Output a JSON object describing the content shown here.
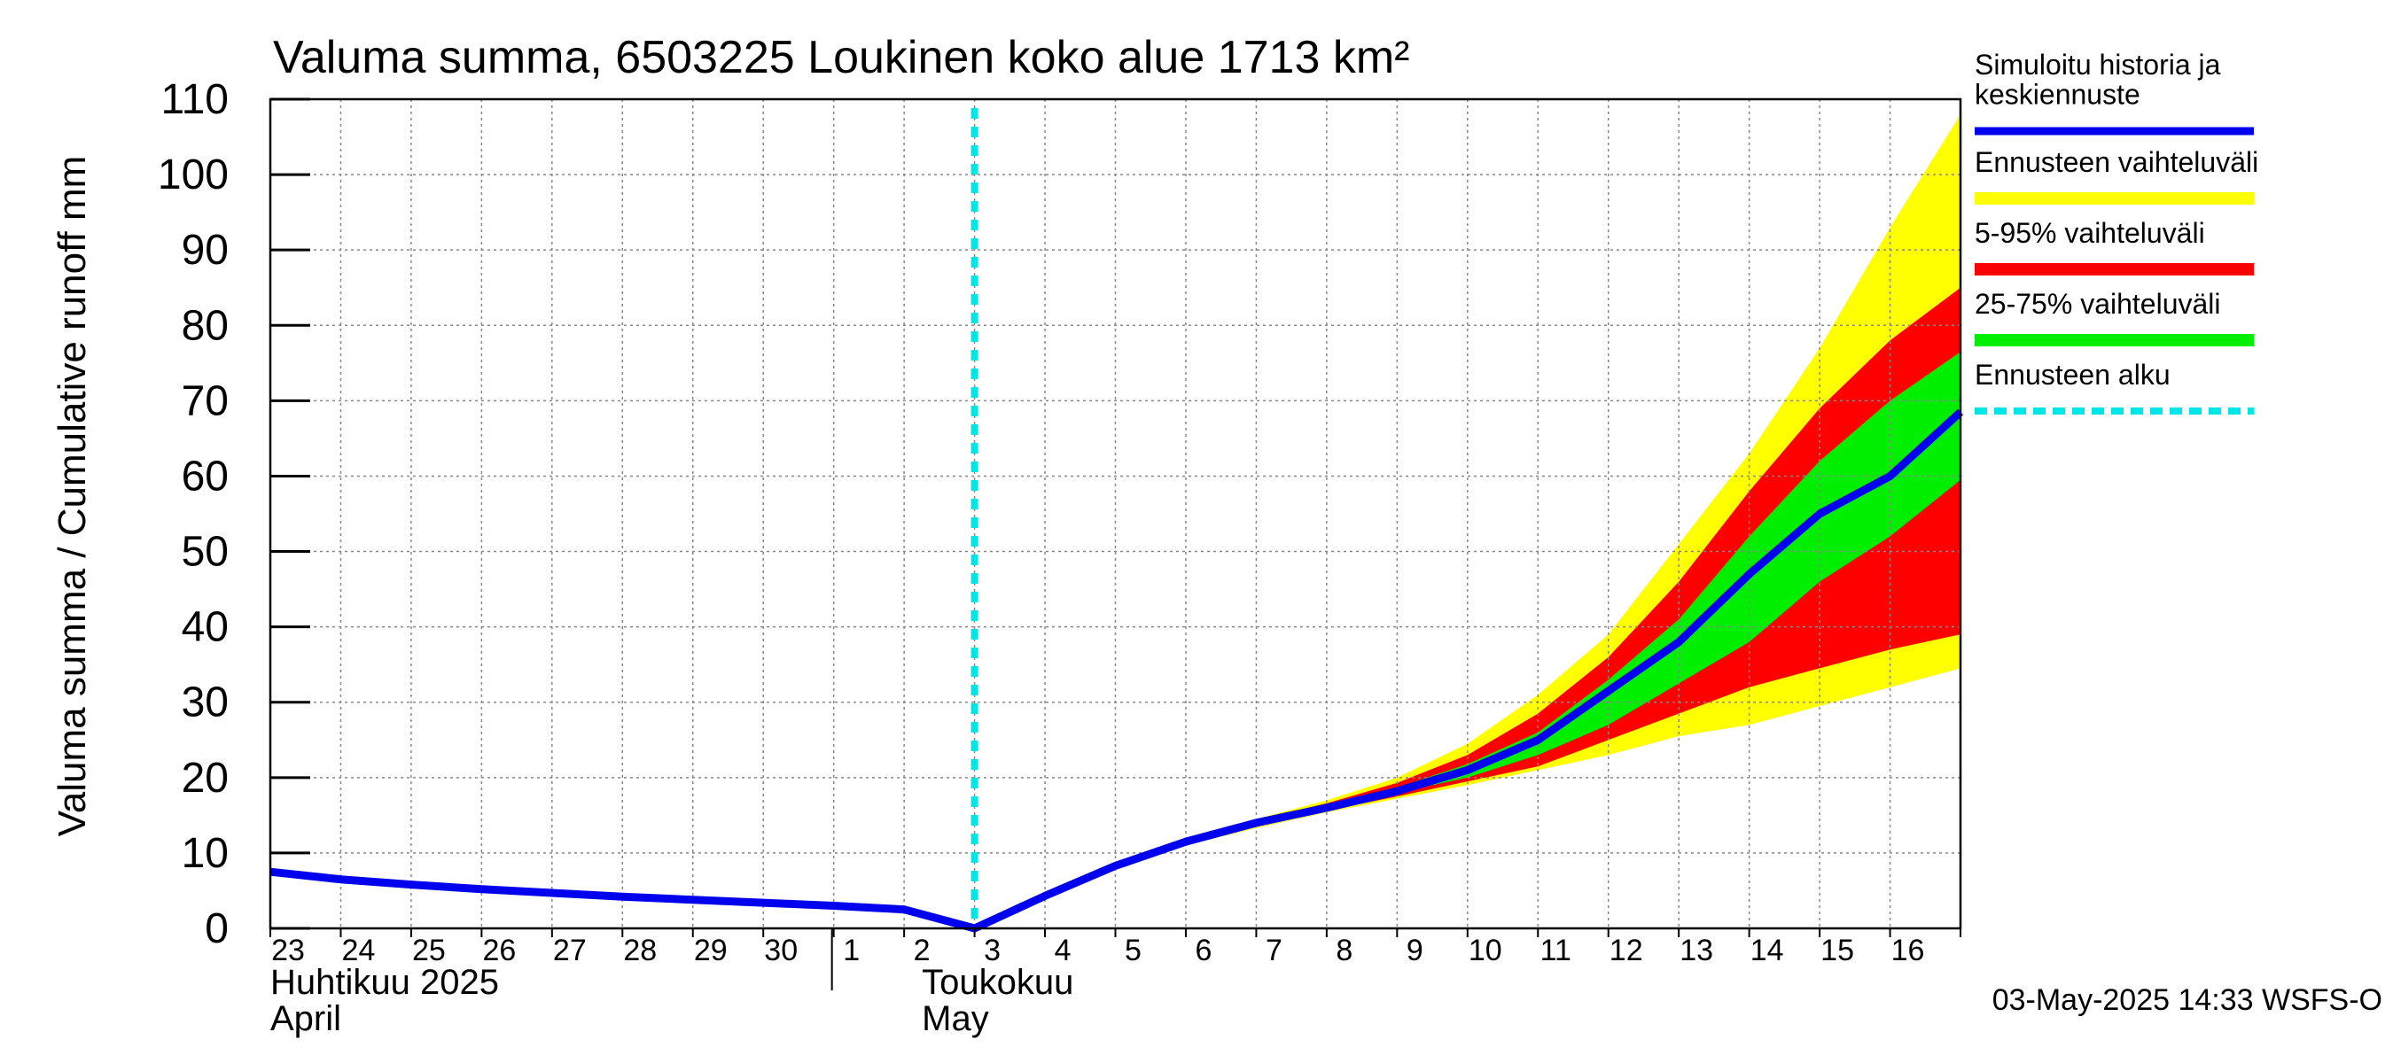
{
  "chart_data": {
    "type": "area",
    "title": "Valuma summa, 6503225 Loukinen koko alue 1713 km²",
    "ylabel": "Valuma summa / Cumulative runoff    mm",
    "ylim": [
      0,
      110
    ],
    "yticks": [
      0,
      10,
      20,
      30,
      40,
      50,
      60,
      70,
      80,
      90,
      100,
      110
    ],
    "grid": true,
    "legend_position": "right",
    "x_range": [
      "2025-04-23",
      "2025-05-17"
    ],
    "day_labels": [
      "23",
      "24",
      "25",
      "26",
      "27",
      "28",
      "29",
      "30",
      "1",
      "2",
      "3",
      "4",
      "5",
      "6",
      "7",
      "8",
      "9",
      "10",
      "11",
      "12",
      "13",
      "14",
      "15",
      "16"
    ],
    "month_labels": [
      {
        "fi": "Huhtikuu  2025",
        "en": "April"
      },
      {
        "fi": "Toukokuu",
        "en": "May"
      }
    ],
    "forecast_start": "2025-05-03",
    "footer": "03-May-2025 14:33 WSFS-O",
    "colors": {
      "history": "#0000ee",
      "range_full": "#ffff00",
      "range_5_95": "#ff0000",
      "range_25_75": "#00ee00",
      "forecast_start": "#00e5e5",
      "grid": "#888888"
    },
    "legend": [
      {
        "label": "Simuloitu historia ja\nkeskiennuste",
        "color": "#0000ee",
        "style": "line"
      },
      {
        "label": "Ennusteen vaihteluväli",
        "color": "#ffff00",
        "style": "band"
      },
      {
        "label": "5-95% vaihteluväli",
        "color": "#ff0000",
        "style": "band"
      },
      {
        "label": "25-75% vaihteluväli",
        "color": "#00ee00",
        "style": "band"
      },
      {
        "label": "Ennusteen alku",
        "color": "#00e5e5",
        "style": "dashed"
      }
    ],
    "x": [
      "2025-04-23",
      "2025-04-24",
      "2025-04-25",
      "2025-04-26",
      "2025-04-27",
      "2025-04-28",
      "2025-04-29",
      "2025-04-30",
      "2025-05-01",
      "2025-05-02",
      "2025-05-03",
      "2025-05-04",
      "2025-05-05",
      "2025-05-06",
      "2025-05-07",
      "2025-05-08",
      "2025-05-09",
      "2025-05-10",
      "2025-05-11",
      "2025-05-12",
      "2025-05-13",
      "2025-05-14",
      "2025-05-15",
      "2025-05-16",
      "2025-05-17"
    ],
    "series": [
      {
        "name": "Simuloitu historia ja keskiennuste",
        "values": [
          7.5,
          6.5,
          5.8,
          5.2,
          4.7,
          4.2,
          3.8,
          3.4,
          3.0,
          2.5,
          0.0,
          4.3,
          8.3,
          11.5,
          14.0,
          16.0,
          18.2,
          21.0,
          25.0,
          31.5,
          38.0,
          47.0,
          55.0,
          60.0,
          68.5
        ]
      },
      {
        "name": "Ennusteen vaihteluväli (max)",
        "values": [
          null,
          null,
          null,
          null,
          null,
          null,
          null,
          null,
          null,
          null,
          0.0,
          4.3,
          8.3,
          11.5,
          14.5,
          17.0,
          20.0,
          24.5,
          31.0,
          39.0,
          51.0,
          63.0,
          77.0,
          93.0,
          108.0
        ]
      },
      {
        "name": "5-95% vaihteluväli (yläraja)",
        "values": [
          null,
          null,
          null,
          null,
          null,
          null,
          null,
          null,
          null,
          null,
          0.0,
          4.3,
          8.3,
          11.5,
          14.3,
          16.6,
          19.3,
          23.0,
          28.5,
          36.0,
          46.0,
          58.0,
          69.0,
          78.0,
          85.0
        ]
      },
      {
        "name": "25-75% vaihteluväli (yläraja)",
        "values": [
          null,
          null,
          null,
          null,
          null,
          null,
          null,
          null,
          null,
          null,
          0.0,
          4.3,
          8.3,
          11.5,
          14.0,
          16.3,
          18.7,
          21.8,
          26.0,
          33.0,
          41.0,
          52.0,
          62.0,
          70.0,
          76.5
        ]
      },
      {
        "name": "25-75% vaihteluväli (alaraja)",
        "values": [
          null,
          null,
          null,
          null,
          null,
          null,
          null,
          null,
          null,
          null,
          0.0,
          4.3,
          8.3,
          11.4,
          13.8,
          15.8,
          18.0,
          20.0,
          23.0,
          27.0,
          32.5,
          38.0,
          46.0,
          52.0,
          59.5
        ]
      },
      {
        "name": "5-95% vaihteluväli (alaraja)",
        "values": [
          null,
          null,
          null,
          null,
          null,
          null,
          null,
          null,
          null,
          null,
          0.0,
          4.3,
          8.3,
          11.2,
          13.5,
          15.6,
          17.5,
          19.5,
          21.5,
          25.0,
          28.5,
          32.0,
          34.5,
          37.0,
          39.0
        ]
      },
      {
        "name": "Ennusteen vaihteluväli (min)",
        "values": [
          null,
          null,
          null,
          null,
          null,
          null,
          null,
          null,
          null,
          null,
          0.0,
          4.3,
          8.3,
          11.0,
          13.3,
          15.4,
          17.2,
          19.0,
          21.0,
          23.0,
          25.5,
          27.0,
          29.5,
          32.0,
          34.5
        ]
      }
    ]
  }
}
